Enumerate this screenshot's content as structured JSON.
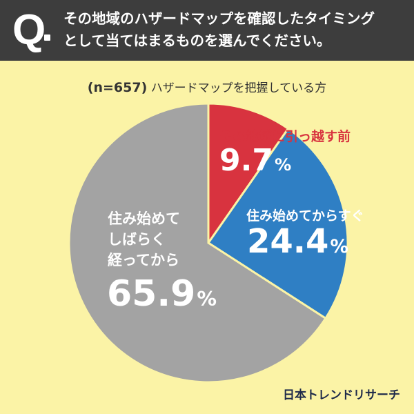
{
  "header": {
    "q_label": "Q",
    "line1": "その地域のハザードマップを確認したタイミング",
    "line2": "として当てはまるものを選んでください。"
  },
  "sample": {
    "n_label": "(n=657)",
    "description": "ハザードマップを把握している方"
  },
  "chart_data": {
    "type": "pie",
    "slices": [
      {
        "label": "その地域に引っ越す前",
        "value": 9.7,
        "color": "#D8333F"
      },
      {
        "label": "住み始めてからすぐ",
        "value": 24.4,
        "color": "#2F7FC4"
      },
      {
        "label_lines": [
          "住み始めて",
          "しばらく",
          "経ってから"
        ],
        "value": 65.9,
        "color": "#A3A3A3"
      }
    ]
  },
  "labels": {
    "red_pct": "9.7",
    "blue_pct": "24.4",
    "gray_pct": "65.9",
    "pct_sign": "%"
  },
  "brand": "日本トレンドリサーチ"
}
